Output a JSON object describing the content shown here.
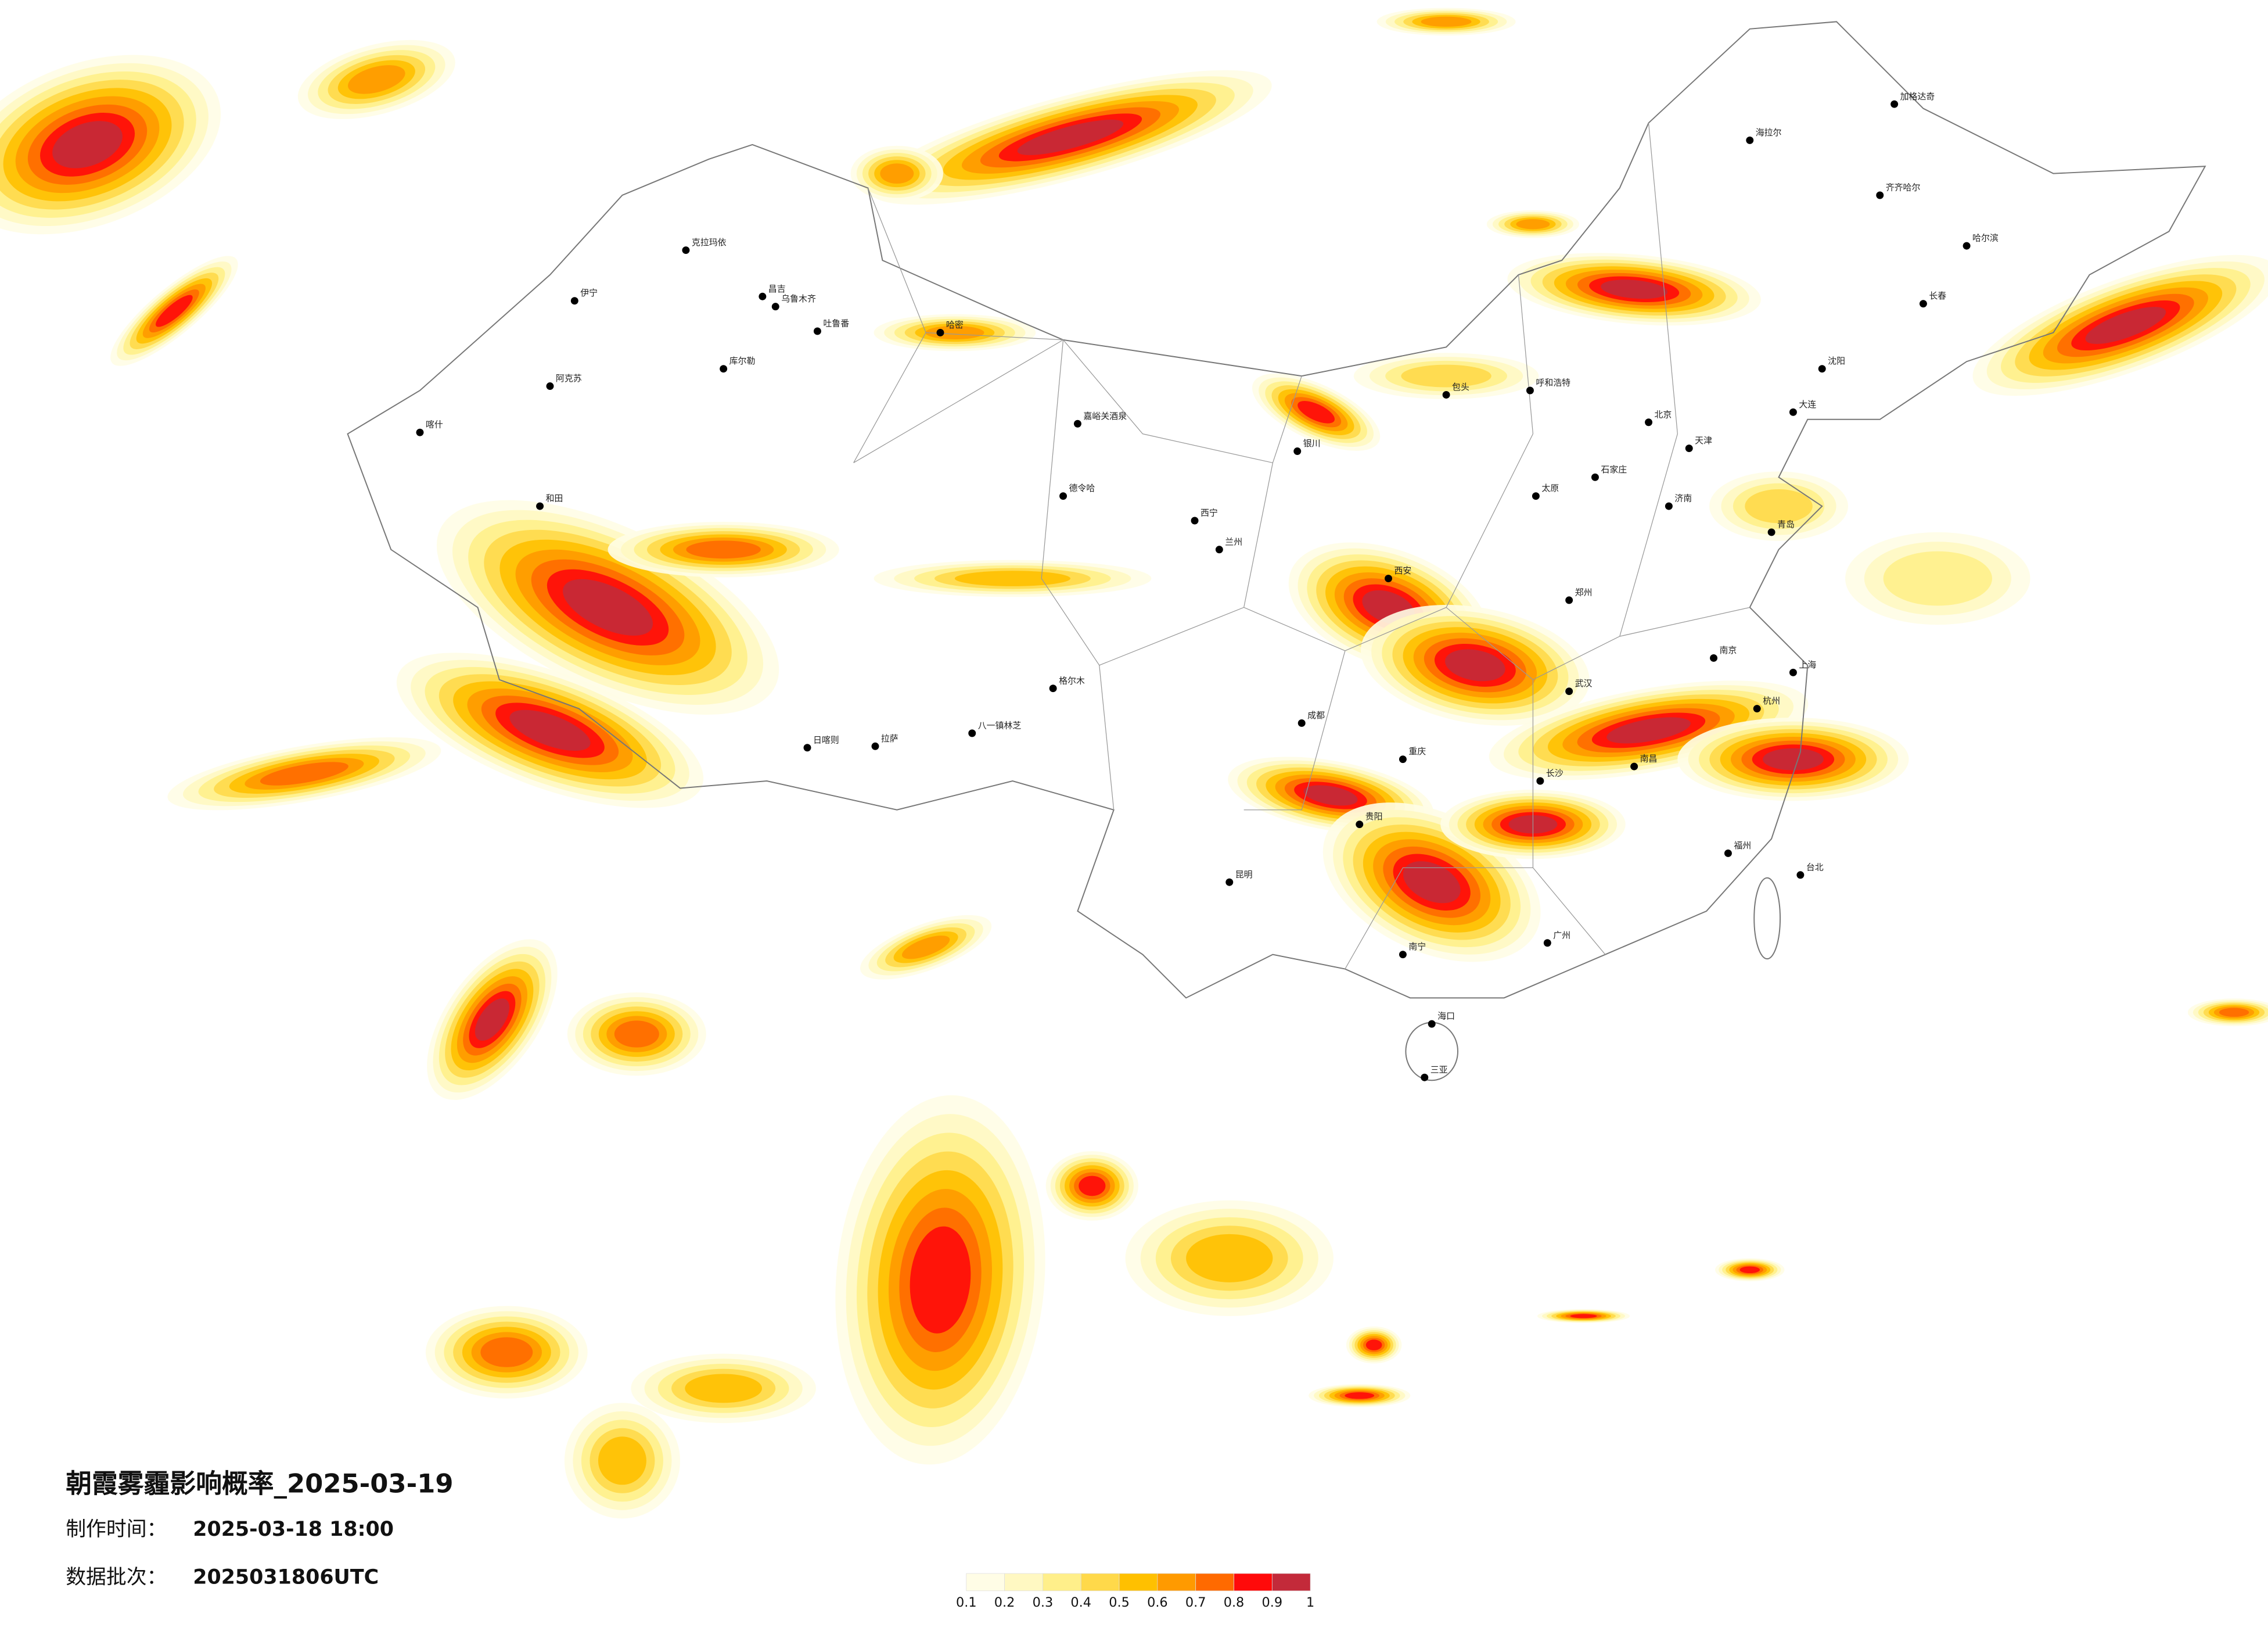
{
  "map": {
    "title": "朝霞雾霾影响概率_2025-03-19",
    "made_label": "制作时间：",
    "made_time": "2025-03-18 18:00",
    "batch_label": "数据批次：",
    "batch": "2025031806UTC",
    "legend": {
      "colors": [
        "#fffde6",
        "#fff8c2",
        "#ffef8a",
        "#ffd94a",
        "#ffc000",
        "#ff9a00",
        "#ff6a00",
        "#ff0a0a",
        "#c32a3a"
      ],
      "ticks": [
        0.1,
        0.2,
        0.3,
        0.4,
        0.5,
        0.6,
        0.7,
        0.8,
        0.9,
        1
      ]
    },
    "cities": [
      "克拉玛依",
      "伊宁",
      "昌吉",
      "乌鲁木齐",
      "吐鲁番",
      "库尔勒",
      "阿克苏",
      "喀什",
      "和田",
      "哈密",
      "嘉峪关酒泉",
      "德令哈",
      "格尔木",
      "拉萨",
      "日喀则",
      "八一镇林芝",
      "西宁",
      "兰州",
      "银川",
      "呼和浩特",
      "包头",
      "北京",
      "天津",
      "石家庄",
      "太原",
      "济南",
      "青岛",
      "郑州",
      "西安",
      "成都",
      "重庆",
      "武汉",
      "南京",
      "上海",
      "杭州",
      "长沙",
      "南昌",
      "福州",
      "广州",
      "南宁",
      "昆明",
      "贵阳",
      "海口",
      "三亚",
      "台北",
      "沈阳",
      "长春",
      "哈尔滨",
      "齐齐哈尔",
      "海拉尔",
      "大连",
      "加格达奇"
    ]
  }
}
